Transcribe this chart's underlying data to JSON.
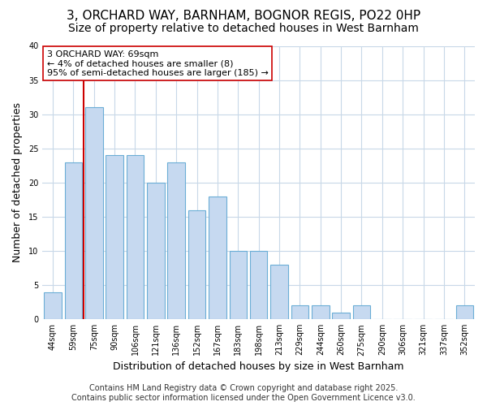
{
  "title_line1": "3, ORCHARD WAY, BARNHAM, BOGNOR REGIS, PO22 0HP",
  "title_line2": "Size of property relative to detached houses in West Barnham",
  "xlabel": "Distribution of detached houses by size in West Barnham",
  "ylabel": "Number of detached properties",
  "categories": [
    "44sqm",
    "59sqm",
    "75sqm",
    "90sqm",
    "106sqm",
    "121sqm",
    "136sqm",
    "152sqm",
    "167sqm",
    "183sqm",
    "198sqm",
    "213sqm",
    "229sqm",
    "244sqm",
    "260sqm",
    "275sqm",
    "290sqm",
    "306sqm",
    "321sqm",
    "337sqm",
    "352sqm"
  ],
  "values": [
    4,
    23,
    31,
    24,
    24,
    20,
    23,
    16,
    18,
    10,
    10,
    8,
    2,
    2,
    1,
    2,
    0,
    0,
    0,
    0,
    2
  ],
  "bar_color": "#c6d9f0",
  "bar_edge_color": "#6baed6",
  "vline_x_index": 2,
  "vline_color": "#cc0000",
  "annotation_line1": "3 ORCHARD WAY: 69sqm",
  "annotation_line2": "← 4% of detached houses are smaller (8)",
  "annotation_line3": "95% of semi-detached houses are larger (185) →",
  "annotation_box_facecolor": "#ffffff",
  "annotation_box_edgecolor": "#cc0000",
  "ylim": [
    0,
    40
  ],
  "yticks": [
    0,
    5,
    10,
    15,
    20,
    25,
    30,
    35,
    40
  ],
  "footer_line1": "Contains HM Land Registry data © Crown copyright and database right 2025.",
  "footer_line2": "Contains public sector information licensed under the Open Government Licence v3.0.",
  "bg_color": "#ffffff",
  "plot_bg_color": "#ffffff",
  "grid_color": "#c8d8e8",
  "title_fontsize": 11,
  "subtitle_fontsize": 10,
  "axis_label_fontsize": 9,
  "tick_fontsize": 7,
  "footer_fontsize": 7,
  "annotation_fontsize": 8
}
